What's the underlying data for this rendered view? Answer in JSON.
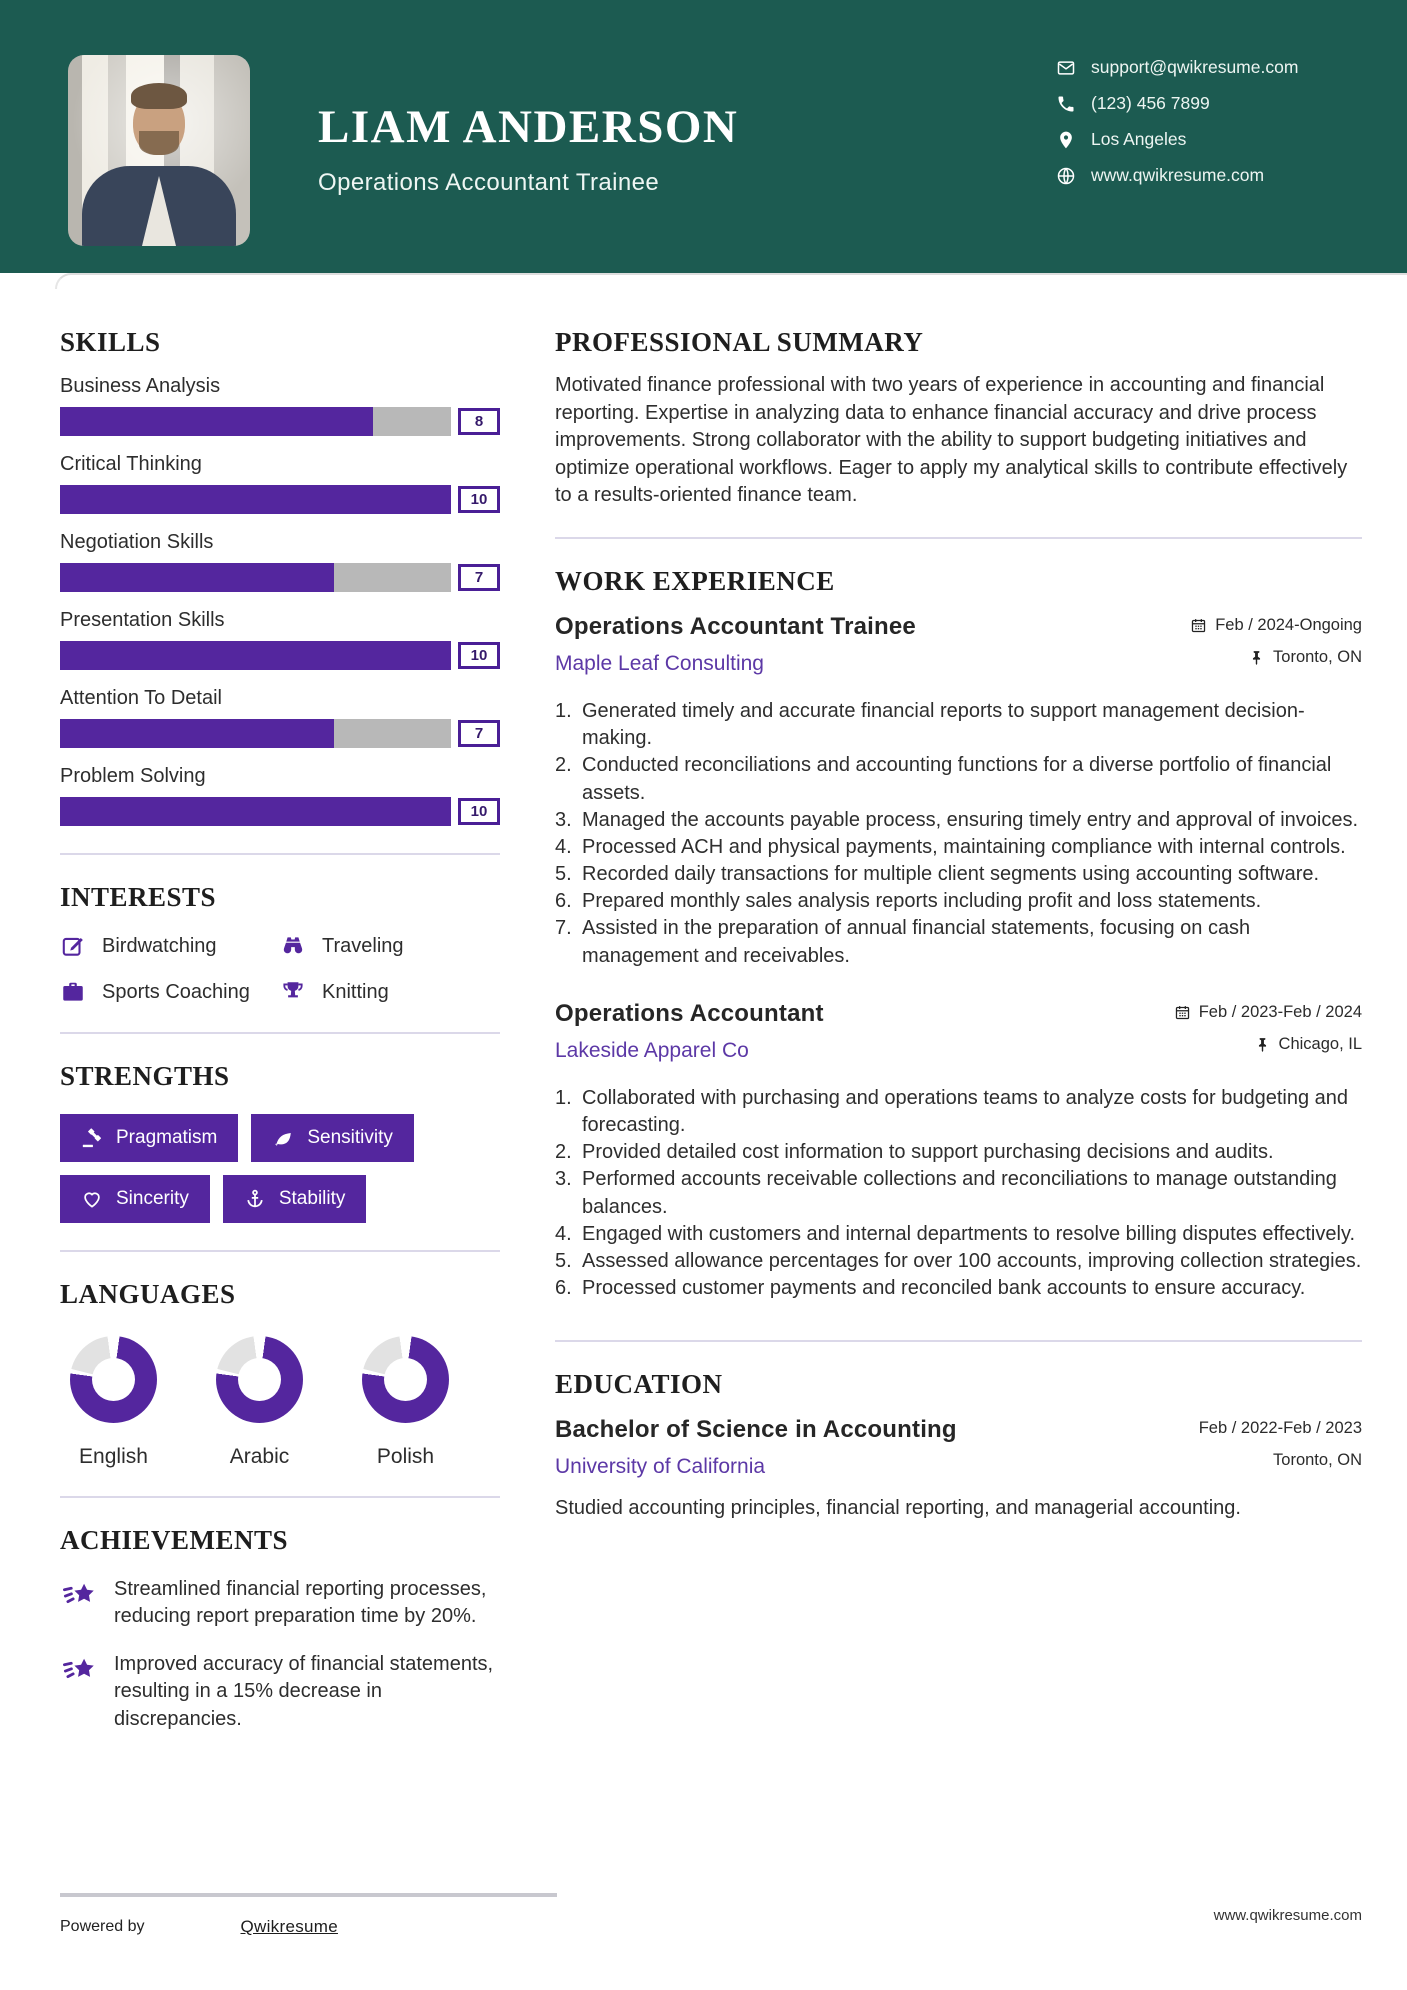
{
  "header": {
    "name": "LIAM ANDERSON",
    "title": "Operations Accountant Trainee",
    "contact": [
      {
        "icon": "mail",
        "label": "support@qwikresume.com"
      },
      {
        "icon": "phone",
        "label": "(123) 456 7899"
      },
      {
        "icon": "pin",
        "label": "Los Angeles"
      },
      {
        "icon": "globe",
        "label": "www.qwikresume.com"
      }
    ]
  },
  "colors": {
    "teal": "#1C5B51",
    "accent": "#54269E",
    "link_purple": "#5C38A6",
    "bar_track": "#B8B8B8",
    "donut_gray": "#E2E2E2"
  },
  "skills": {
    "heading": "SKILLS",
    "max": 10,
    "items": [
      {
        "name": "Business Analysis",
        "value": 8
      },
      {
        "name": "Critical Thinking",
        "value": 10
      },
      {
        "name": "Negotiation Skills",
        "value": 7
      },
      {
        "name": "Presentation Skills",
        "value": 10
      },
      {
        "name": "Attention To Detail",
        "value": 7
      },
      {
        "name": "Problem Solving",
        "value": 10
      }
    ]
  },
  "interests": {
    "heading": "INTERESTS",
    "items": [
      {
        "icon": "edit",
        "label": "Birdwatching"
      },
      {
        "icon": "binoculars",
        "label": "Traveling"
      },
      {
        "icon": "briefcase",
        "label": "Sports Coaching"
      },
      {
        "icon": "trophy",
        "label": "Knitting"
      }
    ]
  },
  "strengths": {
    "heading": "STRENGTHS",
    "items": [
      {
        "icon": "gavel",
        "label": "Pragmatism"
      },
      {
        "icon": "leaf",
        "label": "Sensitivity"
      },
      {
        "icon": "heart",
        "label": "Sincerity"
      },
      {
        "icon": "anchor",
        "label": "Stability"
      }
    ]
  },
  "languages": {
    "heading": "LANGUAGES",
    "items": [
      {
        "label": "English",
        "percent": 75
      },
      {
        "label": "Arabic",
        "percent": 75
      },
      {
        "label": "Polish",
        "percent": 75
      }
    ]
  },
  "achievements": {
    "heading": "ACHIEVEMENTS",
    "items": [
      "Streamlined financial reporting processes, reducing report preparation time by 20%.",
      "Improved accuracy of financial statements, resulting in a 15% decrease in discrepancies."
    ]
  },
  "summary": {
    "heading": "PROFESSIONAL SUMMARY",
    "text": "Motivated finance professional with two years of experience in accounting and financial reporting. Expertise in analyzing data to enhance financial accuracy and drive process improvements. Strong collaborator with the ability to support budgeting initiatives and optimize operational workflows. Eager to apply my analytical skills to contribute effectively to a results-oriented finance team."
  },
  "experience": {
    "heading": "WORK EXPERIENCE",
    "jobs": [
      {
        "title": "Operations Accountant Trainee",
        "company": "Maple Leaf Consulting",
        "dates": "Feb / 2024-Ongoing",
        "location": "Toronto, ON",
        "bullets": [
          "Generated timely and accurate financial reports to support management decision-making.",
          "Conducted reconciliations and accounting functions for a diverse portfolio of financial assets.",
          "Managed the accounts payable process, ensuring timely entry and approval of invoices.",
          "Processed ACH and physical payments, maintaining compliance with internal controls.",
          "Recorded daily transactions for multiple client segments using accounting software.",
          "Prepared monthly sales analysis reports including profit and loss statements.",
          "Assisted in the preparation of annual financial statements, focusing on cash management and receivables."
        ]
      },
      {
        "title": "Operations Accountant",
        "company": "Lakeside Apparel Co",
        "dates": "Feb / 2023-Feb / 2024",
        "location": "Chicago, IL",
        "bullets": [
          "Collaborated with purchasing and operations teams to analyze costs for budgeting and forecasting.",
          "Provided detailed cost information to support purchasing decisions and audits.",
          "Performed accounts receivable collections and reconciliations to manage outstanding balances.",
          "Engaged with customers and internal departments to resolve billing disputes effectively.",
          "Assessed allowance percentages for over 100 accounts, improving collection strategies.",
          "Processed customer payments and reconciled bank accounts to ensure accuracy."
        ]
      }
    ]
  },
  "education": {
    "heading": "EDUCATION",
    "degree": "Bachelor of Science in Accounting",
    "school": "University of California",
    "dates": "Feb / 2022-Feb / 2023",
    "location": "Toronto, ON",
    "description": "Studied accounting principles, financial reporting, and managerial accounting."
  },
  "footer": {
    "powered_by": "Powered by",
    "brand": "Qwikresume",
    "website": "www.qwikresume.com"
  }
}
